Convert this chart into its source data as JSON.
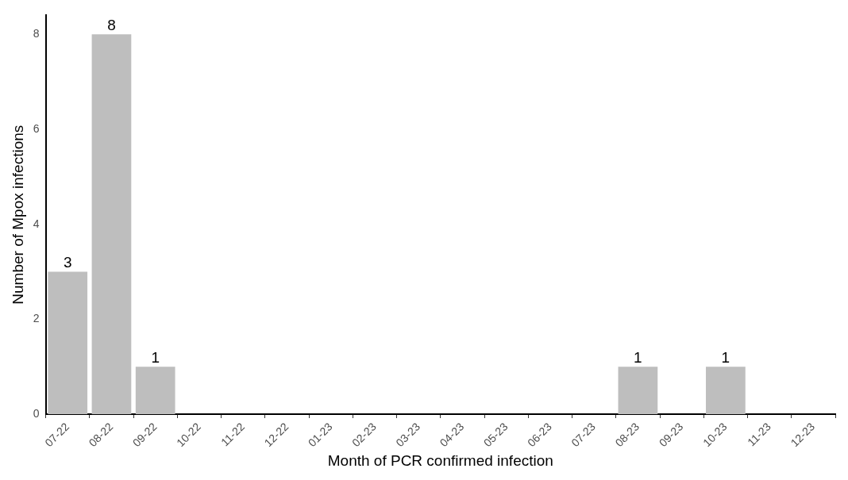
{
  "chart_data": {
    "type": "bar",
    "xlabel": "Month of PCR confirmed infection",
    "ylabel": "Number of Mpox infections",
    "categories": [
      "07-22",
      "08-22",
      "09-22",
      "10-22",
      "11-22",
      "12-22",
      "01-23",
      "02-23",
      "03-23",
      "04-23",
      "05-23",
      "06-23",
      "07-23",
      "08-23",
      "09-23",
      "10-23",
      "11-23",
      "12-23"
    ],
    "values": [
      3,
      8,
      1,
      0,
      0,
      0,
      0,
      0,
      0,
      0,
      0,
      0,
      0,
      1,
      0,
      1,
      0,
      0
    ],
    "value_labels": [
      "3",
      "8",
      "1",
      null,
      null,
      null,
      null,
      null,
      null,
      null,
      null,
      null,
      null,
      "1",
      null,
      "1",
      null,
      null
    ],
    "color": "#bebebe",
    "ylim": [
      0,
      8.4
    ],
    "yticks": [
      0,
      2,
      4,
      6,
      8
    ],
    "grid": false,
    "legend": false
  }
}
